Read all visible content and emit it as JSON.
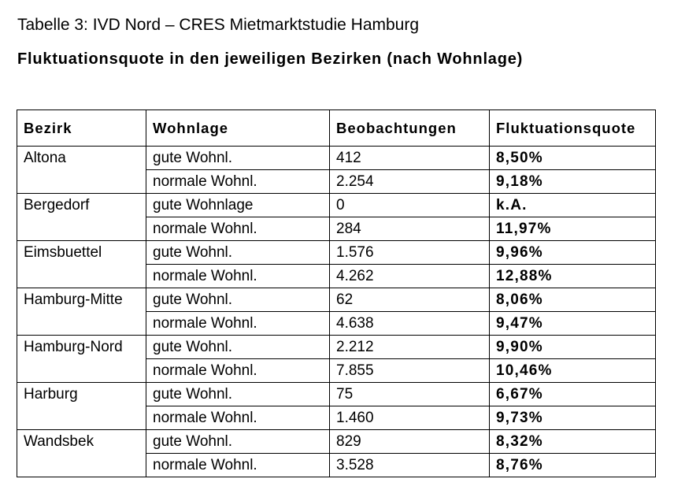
{
  "title": "Tabelle 3: IVD Nord – CRES Mietmarktstudie Hamburg",
  "subtitle": "Fluktuationsquote in den jeweiligen Bezirken (nach Wohnlage)",
  "table": {
    "headers": [
      "Bezirk",
      "Wohnlage",
      "Beobachtungen",
      "Fluktuationsquote"
    ],
    "groups": [
      {
        "bezirk": "Altona",
        "rows": [
          {
            "wohnlage": "gute Wohnl.",
            "beobachtungen": "412",
            "quote": "8,50%"
          },
          {
            "wohnlage": "normale Wohnl.",
            "beobachtungen": "2.254",
            "quote": "9,18%"
          }
        ]
      },
      {
        "bezirk": "Bergedorf",
        "rows": [
          {
            "wohnlage": "gute Wohnlage",
            "beobachtungen": "0",
            "quote": "k.A."
          },
          {
            "wohnlage": "normale Wohnl.",
            "beobachtungen": "284",
            "quote": "11,97%"
          }
        ]
      },
      {
        "bezirk": "Eimsbuettel",
        "rows": [
          {
            "wohnlage": "gute Wohnl.",
            "beobachtungen": "1.576",
            "quote": "9,96%"
          },
          {
            "wohnlage": "normale Wohnl.",
            "beobachtungen": "4.262",
            "quote": "12,88%"
          }
        ]
      },
      {
        "bezirk": "Hamburg-Mitte",
        "rows": [
          {
            "wohnlage": "gute Wohnl.",
            "beobachtungen": "62",
            "quote": "8,06%"
          },
          {
            "wohnlage": "normale Wohnl.",
            "beobachtungen": "4.638",
            "quote": "9,47%"
          }
        ]
      },
      {
        "bezirk": "Hamburg-Nord",
        "rows": [
          {
            "wohnlage": "gute Wohnl.",
            "beobachtungen": "2.212",
            "quote": "9,90%"
          },
          {
            "wohnlage": "normale Wohnl.",
            "beobachtungen": "7.855",
            "quote": "10,46%"
          }
        ]
      },
      {
        "bezirk": "Harburg",
        "rows": [
          {
            "wohnlage": "gute Wohnl.",
            "beobachtungen": "75",
            "quote": "6,67%"
          },
          {
            "wohnlage": "normale Wohnl.",
            "beobachtungen": "1.460",
            "quote": "9,73%"
          }
        ]
      },
      {
        "bezirk": "Wandsbek",
        "rows": [
          {
            "wohnlage": "gute Wohnl.",
            "beobachtungen": "829",
            "quote": "8,32%"
          },
          {
            "wohnlage": "normale Wohnl.",
            "beobachtungen": "3.528",
            "quote": "8,76%"
          }
        ]
      }
    ]
  }
}
